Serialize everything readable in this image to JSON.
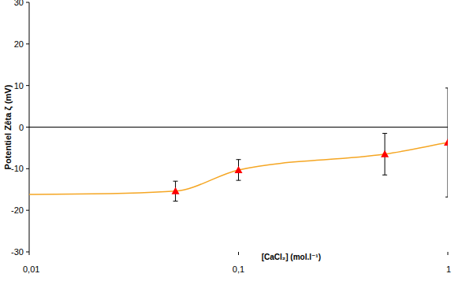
{
  "chart_data": {
    "type": "line",
    "x_label": "[CaCl₂] (mol.l⁻¹)",
    "y_label": "Potentiel Zêta ζ (mV)",
    "log": "x",
    "grid": false,
    "xlim": [
      0.01,
      1
    ],
    "xticks": [
      {
        "value": 0.01,
        "label": "0,01"
      },
      {
        "value": 0.1,
        "label": "0,1"
      },
      1
    ],
    "ylim": [
      -30,
      30
    ],
    "yticks": [
      -30,
      -20,
      -10,
      0,
      10,
      20,
      30
    ],
    "series": [
      {
        "type": "line",
        "color": "#f5a623",
        "line_style": "solid",
        "x": [
          0.01,
          0.05,
          0.1,
          0.5,
          1
        ],
        "values": [
          -16.2,
          -15.4,
          -10.3,
          -6.5,
          -3.7
        ]
      },
      {
        "type": "scatter",
        "color": "#ff0000",
        "marker": "triangle",
        "x": [
          0.05,
          0.1,
          0.5,
          1
        ],
        "values": [
          -15.4,
          -10.3,
          -6.5,
          -3.7
        ],
        "errors": [
          2.4,
          2.5,
          5,
          13.1
        ]
      }
    ]
  }
}
